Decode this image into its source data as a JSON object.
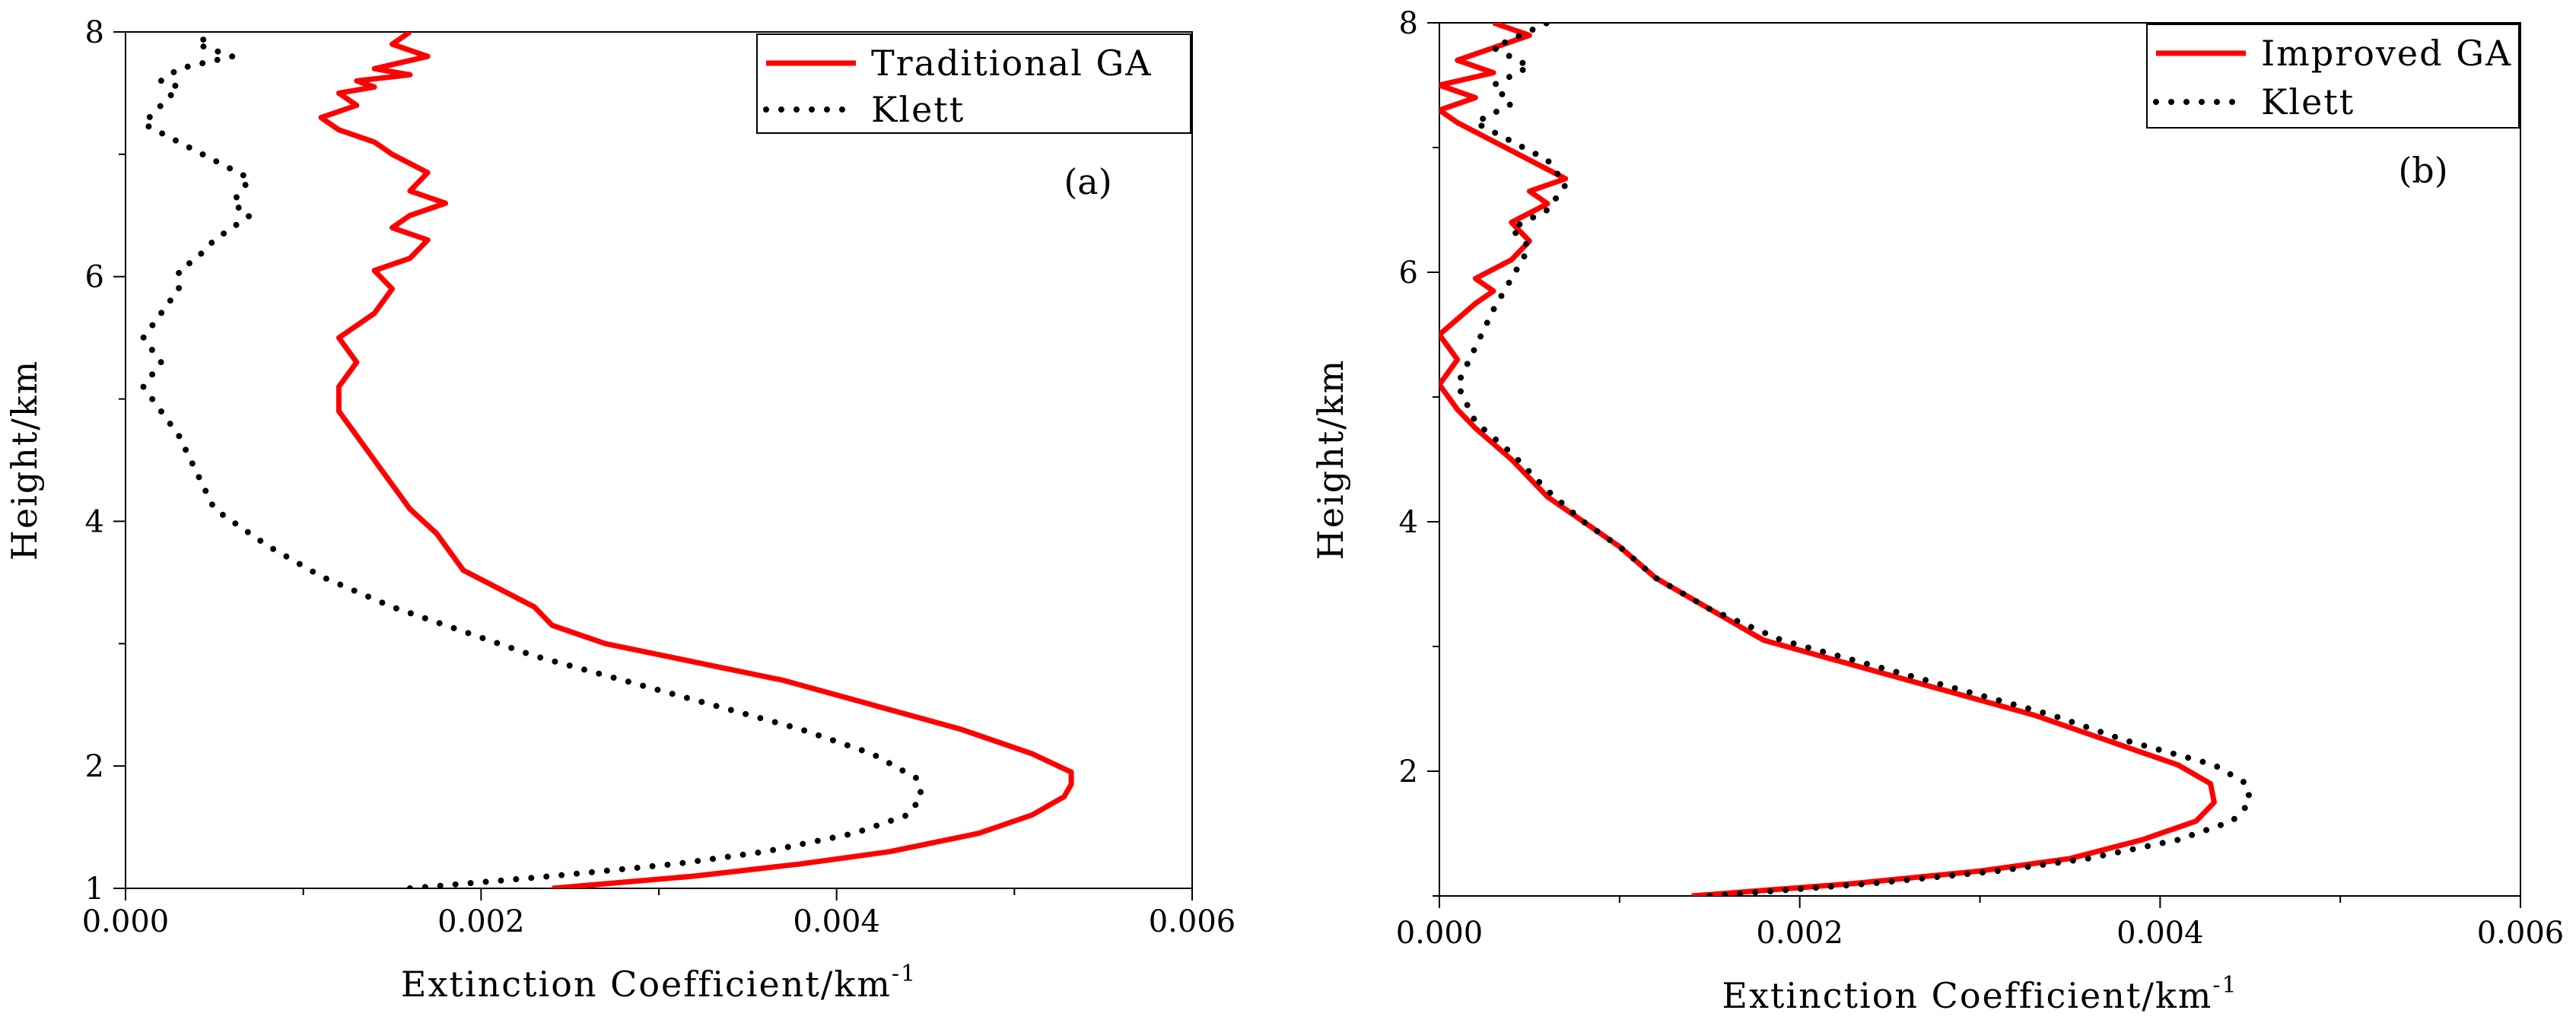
{
  "colors": {
    "red": "#ff0000",
    "black": "#000000"
  },
  "chart_data": [
    {
      "type": "line",
      "panel_label": "(a)",
      "xlabel": "Extinction Coefficient/km",
      "xlabel_sup": "-1",
      "ylabel": "Height/km",
      "xlim": [
        0,
        0.006
      ],
      "ylim": [
        1,
        8
      ],
      "xticks": [
        0.0,
        0.002,
        0.004,
        0.006
      ],
      "xtick_labels": [
        "0.000",
        "0.002",
        "0.004",
        "0.006"
      ],
      "yticks": [
        1,
        2,
        4,
        6,
        8
      ],
      "ytick_labels": [
        "1",
        "2",
        "4",
        "6",
        "8"
      ],
      "legend": {
        "position": "top-right"
      },
      "series": [
        {
          "name": "Traditional GA",
          "style": "solid",
          "color": "#ff0000",
          "x": [
            0.0024,
            0.0032,
            0.0038,
            0.0043,
            0.0048,
            0.0051,
            0.00528,
            0.00532,
            0.00532,
            0.0051,
            0.0047,
            0.0042,
            0.0037,
            0.0032,
            0.0027,
            0.0024,
            0.0023,
            0.0021,
            0.0019,
            0.0018,
            0.00175,
            0.0016,
            0.0015,
            0.0014,
            0.0013,
            0.0012,
            0.0012,
            0.0013,
            0.0012,
            0.0014,
            0.0015,
            0.0014,
            0.0016,
            0.0017,
            0.0015,
            0.0016,
            0.0018,
            0.0016,
            0.0017,
            0.0015,
            0.0014,
            0.0012,
            0.0011,
            0.0013,
            0.0012,
            0.0014,
            0.0013,
            0.0016,
            0.0014,
            0.0017,
            0.0015,
            0.0016
          ],
          "y": [
            1.0,
            1.1,
            1.2,
            1.3,
            1.45,
            1.6,
            1.75,
            1.85,
            1.95,
            2.1,
            2.3,
            2.5,
            2.7,
            2.85,
            3.0,
            3.15,
            3.3,
            3.45,
            3.6,
            3.8,
            3.9,
            4.1,
            4.3,
            4.5,
            4.7,
            4.9,
            5.1,
            5.3,
            5.5,
            5.7,
            5.9,
            6.05,
            6.15,
            6.3,
            6.4,
            6.5,
            6.6,
            6.7,
            6.85,
            7.0,
            7.1,
            7.2,
            7.3,
            7.4,
            7.5,
            7.55,
            7.6,
            7.65,
            7.7,
            7.8,
            7.9,
            8.0
          ]
        },
        {
          "name": "Klett",
          "style": "dotted",
          "color": "#000000",
          "x": [
            0.0016,
            0.0024,
            0.0031,
            0.0036,
            0.0041,
            0.0044,
            0.00448,
            0.00445,
            0.0042,
            0.0038,
            0.0033,
            0.0028,
            0.0023,
            0.0019,
            0.0015,
            0.0011,
            0.0008,
            0.0005,
            0.0004,
            0.0003,
            0.0002,
            0.0001,
            0.0002,
            0.0001,
            0.0002,
            0.0003,
            0.0003,
            0.0004,
            0.0005,
            0.0007,
            0.0006,
            0.0007,
            0.0005,
            0.0003,
            0.0001,
            0.0002,
            0.0003,
            0.0002,
            0.0003,
            0.0006,
            0.0004,
            0.0005
          ],
          "y": [
            1.0,
            1.1,
            1.2,
            1.3,
            1.45,
            1.6,
            1.75,
            1.9,
            2.1,
            2.3,
            2.5,
            2.7,
            2.9,
            3.1,
            3.3,
            3.55,
            3.8,
            4.1,
            4.4,
            4.7,
            4.9,
            5.1,
            5.3,
            5.5,
            5.7,
            5.9,
            6.05,
            6.15,
            6.3,
            6.5,
            6.6,
            6.8,
            6.95,
            7.1,
            7.25,
            7.4,
            7.55,
            7.6,
            7.7,
            7.8,
            7.9,
            8.0
          ]
        }
      ]
    },
    {
      "type": "line",
      "panel_label": "(b)",
      "xlabel": "Extinction Coefficient/km",
      "xlabel_sup": "-1",
      "ylabel": "Height/km",
      "xlim": [
        0,
        0.006
      ],
      "ylim": [
        1,
        8
      ],
      "xticks": [
        0.0,
        0.002,
        0.004,
        0.006
      ],
      "xtick_labels": [
        "0.000",
        "0.002",
        "0.004",
        "0.006"
      ],
      "yticks": [
        2,
        4,
        6,
        8
      ],
      "ytick_labels": [
        "2",
        "4",
        "6",
        "8"
      ],
      "legend": {
        "position": "top-right"
      },
      "series": [
        {
          "name": "Improved GA",
          "style": "solid",
          "color": "#ff0000",
          "x": [
            0.0014,
            0.0023,
            0.003,
            0.0035,
            0.0039,
            0.0042,
            0.0043,
            0.00428,
            0.0041,
            0.0037,
            0.0033,
            0.0028,
            0.0023,
            0.0018,
            0.0015,
            0.0012,
            0.001,
            0.0008,
            0.0006,
            0.0004,
            0.0002,
            0.0001,
            0.0,
            0.0001,
            0.0,
            0.0002,
            0.0003,
            0.0002,
            0.0004,
            0.0005,
            0.0004,
            0.0006,
            0.0005,
            0.0007,
            0.0005,
            0.0003,
            0.0001,
            0.0,
            0.0002,
            0.0,
            0.0003,
            0.0001,
            0.0003,
            0.0005,
            0.0003
          ],
          "y": [
            1.0,
            1.1,
            1.2,
            1.3,
            1.45,
            1.6,
            1.75,
            1.9,
            2.05,
            2.25,
            2.45,
            2.65,
            2.85,
            3.05,
            3.3,
            3.55,
            3.8,
            4.0,
            4.2,
            4.5,
            4.75,
            4.9,
            5.1,
            5.3,
            5.5,
            5.75,
            5.85,
            5.95,
            6.1,
            6.25,
            6.4,
            6.55,
            6.65,
            6.75,
            6.9,
            7.05,
            7.2,
            7.3,
            7.4,
            7.5,
            7.6,
            7.7,
            7.8,
            7.9,
            8.0
          ]
        },
        {
          "name": "Klett",
          "style": "dotted",
          "color": "#000000",
          "x": [
            0.0015,
            0.0024,
            0.0031,
            0.0036,
            0.0041,
            0.0044,
            0.0045,
            0.00448,
            0.0043,
            0.0038,
            0.0034,
            0.0029,
            0.0024,
            0.0019,
            0.0015,
            0.0012,
            0.001,
            0.0008,
            0.0006,
            0.0004,
            0.0002,
            0.0001,
            0.0002,
            0.0003,
            0.0004,
            0.0005,
            0.0004,
            0.0006,
            0.0007,
            0.0006,
            0.0004,
            0.0002,
            0.0004,
            0.0003,
            0.0005,
            0.0003,
            0.0006
          ],
          "y": [
            1.0,
            1.1,
            1.2,
            1.3,
            1.45,
            1.6,
            1.75,
            1.9,
            2.05,
            2.25,
            2.45,
            2.65,
            2.85,
            3.05,
            3.3,
            3.55,
            3.8,
            4.0,
            4.25,
            4.55,
            4.8,
            5.1,
            5.4,
            5.7,
            5.95,
            6.2,
            6.35,
            6.5,
            6.7,
            6.9,
            7.05,
            7.2,
            7.35,
            7.5,
            7.65,
            7.8,
            8.0
          ]
        }
      ]
    }
  ]
}
